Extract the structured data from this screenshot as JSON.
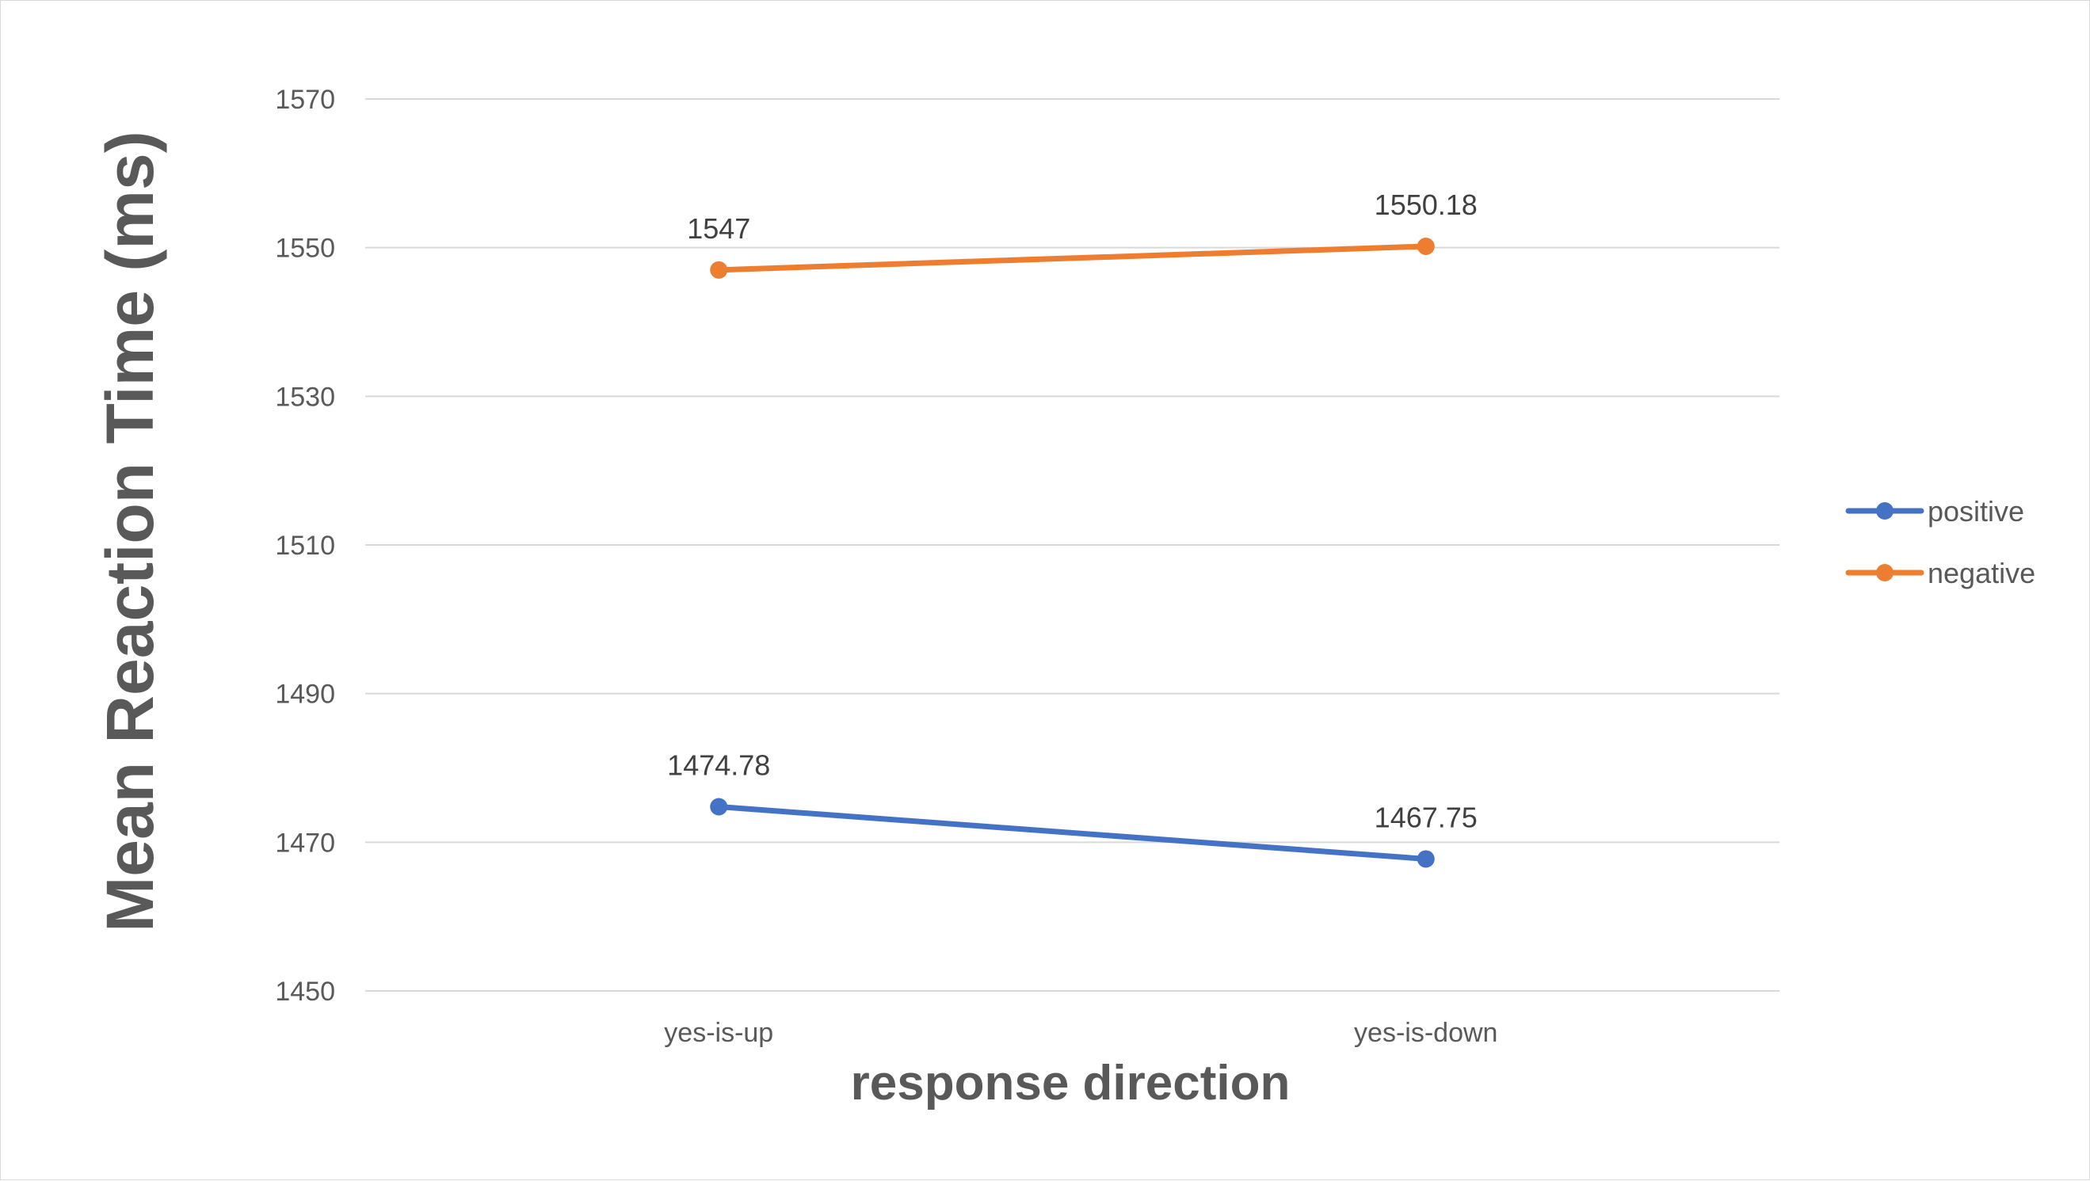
{
  "chart_data": {
    "type": "line",
    "title": "",
    "xlabel": "response direction",
    "ylabel": "Mean Reaction Time (ms)",
    "categories": [
      "yes-is-up",
      "yes-is-down"
    ],
    "ylim": [
      1450,
      1570
    ],
    "yticks": [
      1450,
      1470,
      1490,
      1510,
      1530,
      1550,
      1570
    ],
    "grid": true,
    "legend_position": "right",
    "series": [
      {
        "name": "positive",
        "values": [
          1474.78,
          1467.75
        ],
        "labels": [
          "1474.78",
          "1467.75"
        ],
        "color": "#4472C4"
      },
      {
        "name": "negative",
        "values": [
          1547,
          1550.18
        ],
        "labels": [
          "1547",
          "1550.18"
        ],
        "color": "#ED7D31"
      }
    ]
  }
}
